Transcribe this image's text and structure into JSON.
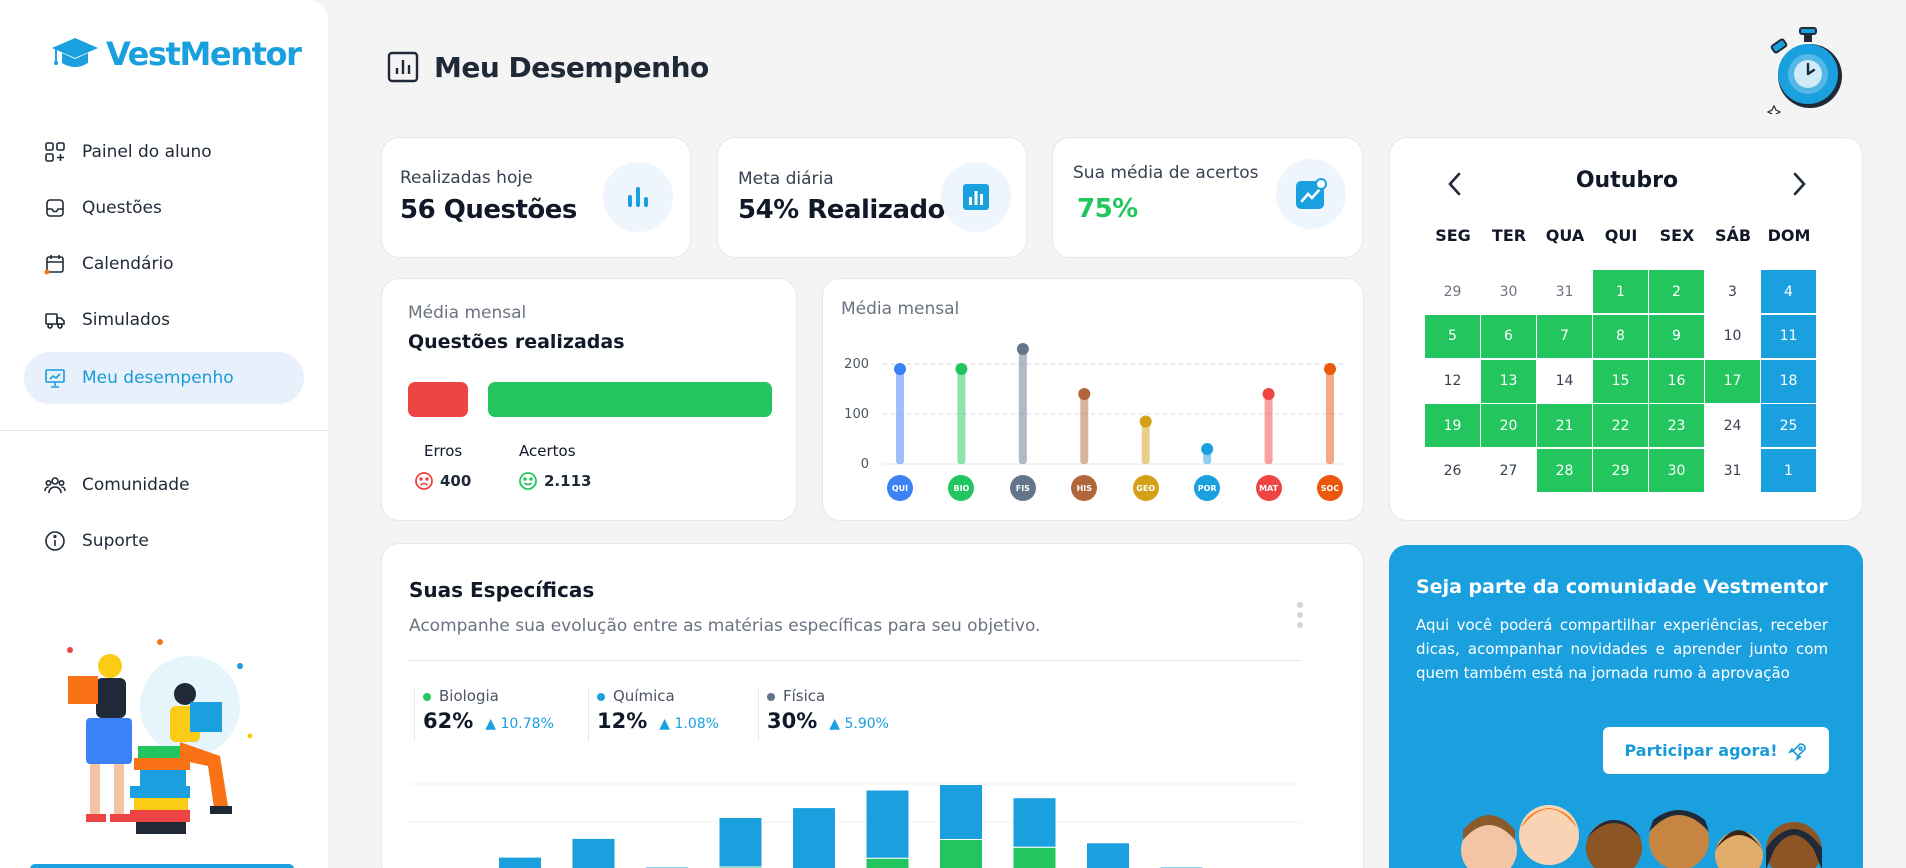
{
  "brand": {
    "name": "VestMentor"
  },
  "sidebar": {
    "items": [
      {
        "label": "Painel do aluno",
        "icon": "grid-plus-icon"
      },
      {
        "label": "Questões",
        "icon": "inbox-icon"
      },
      {
        "label": "Calendário",
        "icon": "calendar-icon"
      },
      {
        "label": "Simulados",
        "icon": "truck-icon"
      },
      {
        "label": "Meu desempenho",
        "icon": "presentation-chart-icon",
        "active": true
      }
    ],
    "bottom_items": [
      {
        "label": "Comunidade",
        "icon": "people-icon"
      },
      {
        "label": "Suporte",
        "icon": "info-icon"
      }
    ]
  },
  "header": {
    "title": "Meu Desempenho"
  },
  "stats": [
    {
      "label": "Realizadas hoje",
      "value": "56 Questões",
      "icon": "bar-chart-icon"
    },
    {
      "label": "Meta diária",
      "value": "54% Realizado",
      "icon": "chart-box-icon"
    },
    {
      "label": "Sua média de acertos",
      "value": "75%",
      "icon": "trend-up-icon"
    }
  ],
  "monthly_questions": {
    "subtitle": "Média mensal",
    "title": "Questões realizadas",
    "errors_label": "Erros",
    "errors_value": "400",
    "hits_label": "Acertos",
    "hits_value": "2.113",
    "errors_count": 400,
    "hits_count": 2113,
    "error_color": "#ef4444",
    "hit_color": "#22c55e"
  },
  "monthly_chart": {
    "subtitle": "Média mensal",
    "chart_data": {
      "type": "bar",
      "categories": [
        "QUI",
        "BIO",
        "FIS",
        "HIS",
        "GEO",
        "POR",
        "MAT",
        "SOC"
      ],
      "values": [
        190,
        190,
        230,
        140,
        85,
        30,
        140,
        190
      ],
      "ylim": [
        0,
        240
      ],
      "yticks": [
        "200",
        "100",
        "0"
      ],
      "colors": [
        "#3b82f6",
        "#22c55e",
        "#64748b",
        "#b0653a",
        "#d4a017",
        "#1aa0de",
        "#ef4444",
        "#ea580c"
      ]
    }
  },
  "calendar": {
    "month": "Outubro",
    "weekdays": [
      "SEG",
      "TER",
      "QUA",
      "QUI",
      "SEX",
      "SÁB",
      "DOM"
    ],
    "weeks": [
      [
        {
          "d": "29",
          "s": "m"
        },
        {
          "d": "30",
          "s": "m"
        },
        {
          "d": "31",
          "s": "m"
        },
        {
          "d": "1",
          "s": "g"
        },
        {
          "d": "2",
          "s": "g"
        },
        {
          "d": "3",
          "s": ""
        },
        {
          "d": "4",
          "s": "b"
        }
      ],
      [
        {
          "d": "5",
          "s": "g"
        },
        {
          "d": "6",
          "s": "g"
        },
        {
          "d": "7",
          "s": "g"
        },
        {
          "d": "8",
          "s": "g"
        },
        {
          "d": "9",
          "s": "g"
        },
        {
          "d": "10",
          "s": ""
        },
        {
          "d": "11",
          "s": "b"
        }
      ],
      [
        {
          "d": "12",
          "s": ""
        },
        {
          "d": "13",
          "s": "g"
        },
        {
          "d": "14",
          "s": ""
        },
        {
          "d": "15",
          "s": "g"
        },
        {
          "d": "16",
          "s": "g"
        },
        {
          "d": "17",
          "s": "g"
        },
        {
          "d": "18",
          "s": "b"
        }
      ],
      [
        {
          "d": "19",
          "s": "g"
        },
        {
          "d": "20",
          "s": "g"
        },
        {
          "d": "21",
          "s": "g"
        },
        {
          "d": "22",
          "s": "g"
        },
        {
          "d": "23",
          "s": "g"
        },
        {
          "d": "24",
          "s": ""
        },
        {
          "d": "25",
          "s": "b"
        }
      ],
      [
        {
          "d": "26",
          "s": ""
        },
        {
          "d": "27",
          "s": ""
        },
        {
          "d": "28",
          "s": "g"
        },
        {
          "d": "29",
          "s": "g"
        },
        {
          "d": "30",
          "s": "g"
        },
        {
          "d": "31",
          "s": ""
        },
        {
          "d": "1",
          "s": "b"
        }
      ]
    ]
  },
  "specifics": {
    "title": "Suas Específicas",
    "subtitle": "Acompanhe sua evolução entre as matérias específicas para seu objetivo.",
    "legend": [
      {
        "name": "Biologia",
        "value": "62%",
        "delta": "10.78%",
        "color": "#22c55e"
      },
      {
        "name": "Química",
        "value": "12%",
        "delta": "1.08%",
        "color": "#1aa0de"
      },
      {
        "name": "Física",
        "value": "30%",
        "delta": "5.90%",
        "color": "#64748b"
      }
    ],
    "chart_data": {
      "type": "bar",
      "stacked": true,
      "series": [
        {
          "name": "",
          "color": "#22c55e",
          "values": [
            0,
            4,
            8,
            0,
            20,
            12,
            28,
            45,
            38,
            0,
            0
          ]
        },
        {
          "name": "",
          "color": "#1aa0de",
          "values": [
            8,
            25,
            38,
            20,
            45,
            62,
            62,
            50,
            45,
            42,
            20
          ]
        }
      ]
    }
  },
  "community": {
    "title": "Seja parte da comunidade Vestmentor",
    "text": "Aqui você poderá compartilhar experiências, receber dicas, acompanhar novidades e aprender junto com quem também está na jornada rumo à aprovação",
    "button": "Participar agora!"
  }
}
